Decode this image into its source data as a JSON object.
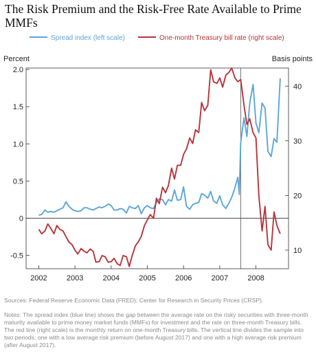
{
  "title": "The Risk Premium and the Risk-Free Rate Available to Prime MMFs",
  "source": "Sources: Federal Reserve Economic Data (FRED); Center for Research in Security Prices (CRSP).",
  "notes": "Notes: The spread index (blue line) shows the gap between the average rate on the risky securities with three-month maturity available to prime money market funds (MMFs) for investment and the rate on three-month Treasury bills. The red line (right scale) is the monthly return on one-month Treasury bills. The vertical line divides the sample into two periods: one with a low average risk premium (before August 2017) and one with a high average risk premium (after August 2017).",
  "chart_data": {
    "type": "line",
    "left_axis": {
      "label": "Percent",
      "ylim": [
        -0.68,
        2.02
      ],
      "ticks": [
        "-0.5",
        "0",
        "0.5",
        "1.0",
        "1.5",
        "2.0"
      ],
      "tick_values": [
        -0.5,
        0,
        0.5,
        1.0,
        1.5,
        2.0
      ]
    },
    "right_axis": {
      "label": "Basis points",
      "ylim": [
        6.6,
        43.3
      ],
      "ticks": [
        "10",
        "20",
        "30",
        "40"
      ],
      "tick_values": [
        10,
        20,
        30,
        40
      ]
    },
    "x_axis": {
      "ticks": [
        "2002",
        "2003",
        "2004",
        "2005",
        "2006",
        "2007",
        "2008"
      ],
      "tick_values": [
        2002,
        2003,
        2004,
        2005,
        2006,
        2007,
        2008
      ],
      "xlim": [
        2001.65,
        2008.9
      ]
    },
    "vertical_line_x": 2007.58,
    "zero_line": true,
    "legend_position": "top",
    "series": [
      {
        "name": "Spread index (left scale)",
        "axis": "left",
        "color": "#5aa6d8",
        "points": [
          [
            2002.0,
            0.04
          ],
          [
            2002.08,
            0.05
          ],
          [
            2002.17,
            0.11
          ],
          [
            2002.25,
            0.08
          ],
          [
            2002.33,
            0.09
          ],
          [
            2002.42,
            0.08
          ],
          [
            2002.5,
            0.1
          ],
          [
            2002.58,
            0.12
          ],
          [
            2002.67,
            0.14
          ],
          [
            2002.75,
            0.22
          ],
          [
            2002.83,
            0.16
          ],
          [
            2002.92,
            0.12
          ],
          [
            2003.0,
            0.1
          ],
          [
            2003.08,
            0.09
          ],
          [
            2003.17,
            0.1
          ],
          [
            2003.25,
            0.14
          ],
          [
            2003.33,
            0.14
          ],
          [
            2003.42,
            0.12
          ],
          [
            2003.5,
            0.11
          ],
          [
            2003.58,
            0.13
          ],
          [
            2003.67,
            0.15
          ],
          [
            2003.75,
            0.14
          ],
          [
            2003.83,
            0.16
          ],
          [
            2003.92,
            0.19
          ],
          [
            2004.0,
            0.17
          ],
          [
            2004.08,
            0.11
          ],
          [
            2004.17,
            0.11
          ],
          [
            2004.25,
            0.13
          ],
          [
            2004.33,
            0.12
          ],
          [
            2004.42,
            0.07
          ],
          [
            2004.5,
            0.16
          ],
          [
            2004.58,
            0.14
          ],
          [
            2004.67,
            0.13
          ],
          [
            2004.75,
            0.17
          ],
          [
            2004.83,
            0.06
          ],
          [
            2004.92,
            0.14
          ],
          [
            2005.0,
            0.17
          ],
          [
            2005.08,
            0.14
          ],
          [
            2005.17,
            0.13
          ],
          [
            2005.25,
            0.21
          ],
          [
            2005.33,
            0.26
          ],
          [
            2005.42,
            0.25
          ],
          [
            2005.5,
            0.18
          ],
          [
            2005.58,
            0.25
          ],
          [
            2005.67,
            0.23
          ],
          [
            2005.75,
            0.38
          ],
          [
            2005.83,
            0.24
          ],
          [
            2005.92,
            0.25
          ],
          [
            2006.0,
            0.42
          ],
          [
            2006.08,
            0.16
          ],
          [
            2006.17,
            0.12
          ],
          [
            2006.25,
            0.18
          ],
          [
            2006.33,
            0.2
          ],
          [
            2006.42,
            0.21
          ],
          [
            2006.5,
            0.33
          ],
          [
            2006.58,
            0.31
          ],
          [
            2006.67,
            0.27
          ],
          [
            2006.75,
            0.36
          ],
          [
            2006.83,
            0.23
          ],
          [
            2006.92,
            0.2
          ],
          [
            2007.0,
            0.3
          ],
          [
            2007.08,
            0.18
          ],
          [
            2007.17,
            0.13
          ],
          [
            2007.25,
            0.2
          ],
          [
            2007.33,
            0.28
          ],
          [
            2007.42,
            0.41
          ],
          [
            2007.5,
            0.55
          ],
          [
            2007.54,
            0.32
          ],
          [
            2007.58,
            1.02
          ],
          [
            2007.67,
            1.35
          ],
          [
            2007.75,
            1.1
          ],
          [
            2007.83,
            1.55
          ],
          [
            2007.92,
            1.8
          ],
          [
            2008.0,
            1.28
          ],
          [
            2008.08,
            1.15
          ],
          [
            2008.17,
            1.55
          ],
          [
            2008.25,
            1.48
          ],
          [
            2008.33,
            0.9
          ],
          [
            2008.42,
            0.83
          ],
          [
            2008.5,
            1.07
          ],
          [
            2008.58,
            1.02
          ],
          [
            2008.67,
            1.88
          ]
        ]
      },
      {
        "name": "One-month Treasury bill rate (right scale)",
        "axis": "right",
        "color": "#b8333a",
        "points": [
          [
            2002.0,
            13.8
          ],
          [
            2002.08,
            13.0
          ],
          [
            2002.17,
            13.5
          ],
          [
            2002.25,
            14.8
          ],
          [
            2002.33,
            14.0
          ],
          [
            2002.42,
            13.0
          ],
          [
            2002.5,
            14.5
          ],
          [
            2002.58,
            13.8
          ],
          [
            2002.67,
            13.5
          ],
          [
            2002.75,
            12.5
          ],
          [
            2002.83,
            11.5
          ],
          [
            2002.92,
            11.0
          ],
          [
            2003.0,
            10.0
          ],
          [
            2003.08,
            9.3
          ],
          [
            2003.17,
            10.3
          ],
          [
            2003.25,
            9.8
          ],
          [
            2003.33,
            9.5
          ],
          [
            2003.42,
            10.2
          ],
          [
            2003.5,
            9.8
          ],
          [
            2003.58,
            7.8
          ],
          [
            2003.67,
            7.9
          ],
          [
            2003.75,
            9.0
          ],
          [
            2003.83,
            8.8
          ],
          [
            2003.92,
            7.8
          ],
          [
            2004.0,
            7.9
          ],
          [
            2004.08,
            8.5
          ],
          [
            2004.17,
            7.5
          ],
          [
            2004.25,
            7.2
          ],
          [
            2004.33,
            9.0
          ],
          [
            2004.42,
            8.8
          ],
          [
            2004.5,
            7.0
          ],
          [
            2004.58,
            9.0
          ],
          [
            2004.67,
            10.8
          ],
          [
            2004.75,
            11.5
          ],
          [
            2004.83,
            12.5
          ],
          [
            2004.92,
            14.5
          ],
          [
            2005.0,
            15.5
          ],
          [
            2005.08,
            16.5
          ],
          [
            2005.17,
            15.8
          ],
          [
            2005.25,
            19.5
          ],
          [
            2005.33,
            18.5
          ],
          [
            2005.42,
            21.5
          ],
          [
            2005.5,
            20.5
          ],
          [
            2005.58,
            21.8
          ],
          [
            2005.67,
            25.0
          ],
          [
            2005.75,
            23.0
          ],
          [
            2005.83,
            25.5
          ],
          [
            2005.92,
            25.5
          ],
          [
            2006.0,
            27.5
          ],
          [
            2006.08,
            28.5
          ],
          [
            2006.17,
            30.5
          ],
          [
            2006.25,
            29.5
          ],
          [
            2006.33,
            32.0
          ],
          [
            2006.42,
            31.5
          ],
          [
            2006.5,
            37.0
          ],
          [
            2006.58,
            35.5
          ],
          [
            2006.67,
            36.5
          ],
          [
            2006.75,
            43.0
          ],
          [
            2006.83,
            40.8
          ],
          [
            2006.92,
            40.5
          ],
          [
            2007.0,
            41.5
          ],
          [
            2007.08,
            39.8
          ],
          [
            2007.17,
            42.0
          ],
          [
            2007.25,
            42.5
          ],
          [
            2007.33,
            43.3
          ],
          [
            2007.42,
            41.5
          ],
          [
            2007.5,
            40.8
          ],
          [
            2007.58,
            41.2
          ],
          [
            2007.67,
            36.5
          ],
          [
            2007.75,
            33.0
          ],
          [
            2007.83,
            34.0
          ],
          [
            2007.92,
            31.5
          ],
          [
            2008.0,
            30.5
          ],
          [
            2008.08,
            20.0
          ],
          [
            2008.17,
            13.5
          ],
          [
            2008.25,
            18.0
          ],
          [
            2008.33,
            11.0
          ],
          [
            2008.42,
            10.0
          ],
          [
            2008.5,
            17.0
          ],
          [
            2008.58,
            14.5
          ],
          [
            2008.67,
            13.0
          ]
        ]
      }
    ]
  }
}
